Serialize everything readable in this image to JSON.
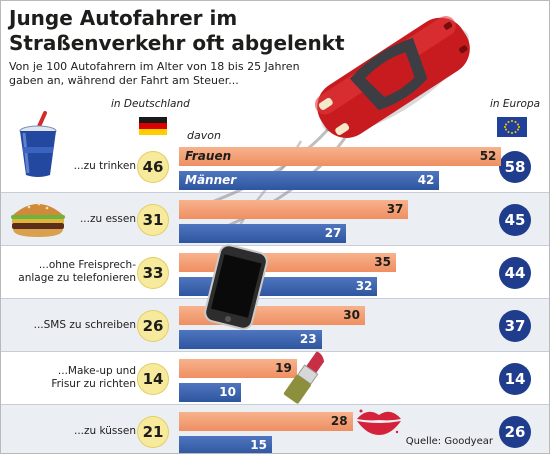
{
  "title_line1": "Junge Autofahrer im",
  "title_line2": "Straßenverkehr oft abgelenkt",
  "subtitle_line1": "Von je 100 Autofahrern im Alter von 18 bis 25 Jahren",
  "subtitle_line2": "gaben an, während der Fahrt am Steuer...",
  "header_de": "in Deutschland",
  "header_eu": "in Europa",
  "header_davon": "davon",
  "source": "Quelle: Goodyear",
  "colors": {
    "frauen": "#ef8f62",
    "maenner": "#2e559f",
    "de_circle": "#f7ea9c",
    "eu_circle": "#1f3d8c"
  },
  "chart_data": {
    "type": "bar",
    "title": "Junge Autofahrer im Straßenverkehr oft abgelenkt",
    "categories": [
      "...zu trinken",
      "...zu essen",
      "...ohne Freisprech-anlage zu telefonieren",
      "...SMS zu schreiben",
      "...Make-up und Frisur zu richten",
      "...zu küssen"
    ],
    "rows": [
      {
        "label": [
          "...zu trinken"
        ],
        "icon": "drink-cup-icon",
        "de": 46,
        "frauen": 52,
        "maenner": 42,
        "eu": 58
      },
      {
        "label": [
          "...zu essen"
        ],
        "icon": "burger-icon",
        "de": 31,
        "frauen": 37,
        "maenner": 27,
        "eu": 45
      },
      {
        "label": [
          "...ohne Freisprech-",
          "anlage zu telefonieren"
        ],
        "icon": "phone-icon",
        "de": 33,
        "frauen": 35,
        "maenner": 32,
        "eu": 44
      },
      {
        "label": [
          "...SMS zu schreiben"
        ],
        "icon": "phone-icon",
        "de": 26,
        "frauen": 30,
        "maenner": 23,
        "eu": 37
      },
      {
        "label": [
          "...Make-up und",
          "Frisur zu richten"
        ],
        "icon": "lipstick-icon",
        "de": 14,
        "frauen": 19,
        "maenner": 10,
        "eu": 14
      },
      {
        "label": [
          "...zu küssen"
        ],
        "icon": "kiss-lips-icon",
        "de": 21,
        "frauen": 28,
        "maenner": 15,
        "eu": 26
      }
    ],
    "series": [
      {
        "name": "Frauen",
        "key": "frauen"
      },
      {
        "name": "Männer",
        "key": "maenner"
      }
    ],
    "columns": {
      "de": "in Deutschland",
      "eu": "in Europa"
    },
    "xlim": [
      0,
      55
    ]
  }
}
